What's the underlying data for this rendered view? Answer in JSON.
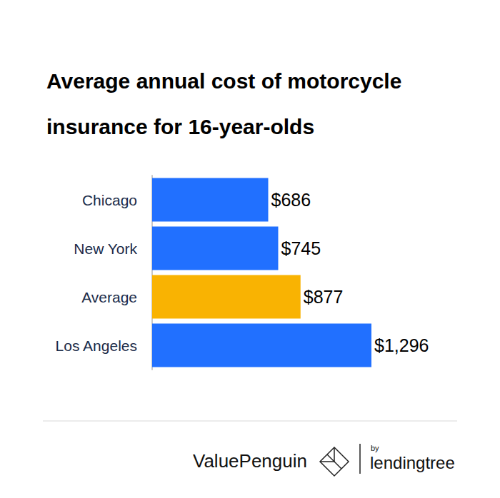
{
  "chart_data": {
    "type": "bar",
    "title": "Average annual cost of motorcycle insurance for 16-year-olds",
    "categories": [
      "Chicago",
      "New York",
      "Average",
      "Los Angeles"
    ],
    "values": [
      686,
      745,
      877,
      1296
    ],
    "value_labels": [
      "$686",
      "$745",
      "$877",
      "$1,296"
    ],
    "colors": [
      "#2170ff",
      "#2170ff",
      "#f9b302",
      "#2170ff"
    ],
    "orientation": "horizontal",
    "xlim": [
      0,
      1296
    ],
    "grid": false,
    "data_labels": true,
    "tick_labels": "y",
    "annotations": [
      "ValuePenguin",
      "by",
      "lendingtree"
    ]
  }
}
